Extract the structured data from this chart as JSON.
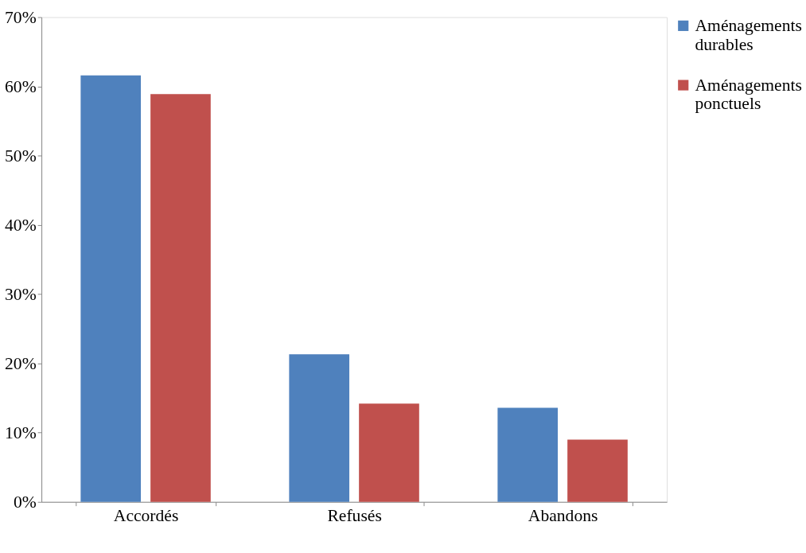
{
  "chart_data": {
    "type": "bar",
    "categories": [
      "Accordés",
      "Refusés",
      "Abandons"
    ],
    "series": [
      {
        "name": "Aménagements durables",
        "color": "#4f81bd",
        "values": [
          61.6,
          21.3,
          13.6
        ]
      },
      {
        "name": "Aménagements ponctuels",
        "color": "#c0504d",
        "values": [
          58.9,
          14.2,
          9.0
        ]
      }
    ],
    "ylim": [
      0,
      70
    ],
    "yticks": [
      {
        "value": 0,
        "label": "0%"
      },
      {
        "value": 10,
        "label": "10%"
      },
      {
        "value": 20,
        "label": "20%"
      },
      {
        "value": 30,
        "label": "30%"
      },
      {
        "value": 40,
        "label": "40%"
      },
      {
        "value": 50,
        "label": "50%"
      },
      {
        "value": 60,
        "label": "60%"
      },
      {
        "value": 70,
        "label": "70%"
      }
    ],
    "grid": false,
    "legend": "right"
  }
}
